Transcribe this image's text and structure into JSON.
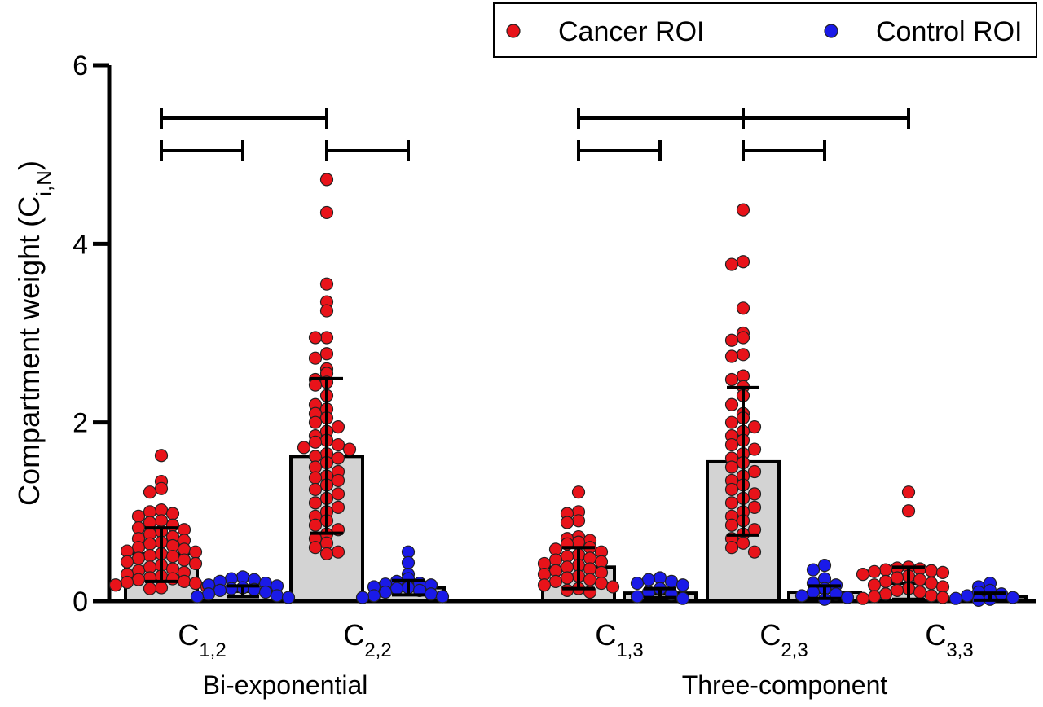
{
  "chart_data": {
    "type": "bar",
    "ylabel": "Compartment weight (C",
    "ylabel_sub": "i,N",
    "ylabel_close": ")",
    "ylim": [
      0,
      6
    ],
    "yticks": [
      "0",
      "2",
      "4",
      "6"
    ],
    "grid": false,
    "legend": {
      "placement": "top-right",
      "entries": [
        {
          "name": "Cancer ROI",
          "color": "#e8131a"
        },
        {
          "name": "Control ROI",
          "color": "#1a1ae8"
        }
      ]
    },
    "groups": [
      {
        "label": "Bi-exponential",
        "categories": [
          "C1,2",
          "C2,2"
        ]
      },
      {
        "label": "Three-component",
        "categories": [
          "C1,3",
          "C2,3",
          "C3,3"
        ]
      }
    ],
    "categories": [
      {
        "base": "C",
        "sub": "1,2",
        "group": "Bi-exponential"
      },
      {
        "base": "C",
        "sub": "2,2",
        "group": "Bi-exponential"
      },
      {
        "base": "C",
        "sub": "1,3",
        "group": "Three-component"
      },
      {
        "base": "C",
        "sub": "2,3",
        "group": "Three-component"
      },
      {
        "base": "C",
        "sub": "3,3",
        "group": "Three-component"
      }
    ],
    "series": [
      {
        "name": "Cancer ROI",
        "color": "#e8131a",
        "bar_color": "#d3d3d3",
        "means": [
          0.53,
          1.62,
          0.38,
          1.56,
          0.2
        ],
        "sd_lower": [
          0.22,
          0.76,
          0.14,
          0.74,
          0.02
        ],
        "sd_upper": [
          0.82,
          2.49,
          0.6,
          2.39,
          0.38
        ],
        "points": [
          [
            1.63,
            1.34,
            1.26,
            1.22,
            1.02,
            1.0,
            0.98,
            0.95,
            0.9,
            0.88,
            0.85,
            0.82,
            0.8,
            0.78,
            0.75,
            0.72,
            0.7,
            0.68,
            0.66,
            0.64,
            0.62,
            0.6,
            0.58,
            0.56,
            0.55,
            0.53,
            0.51,
            0.5,
            0.48,
            0.46,
            0.44,
            0.42,
            0.4,
            0.38,
            0.36,
            0.34,
            0.32,
            0.3,
            0.28,
            0.26,
            0.25,
            0.24,
            0.22,
            0.21,
            0.2,
            0.18,
            0.16,
            0.15,
            0.14
          ],
          [
            4.72,
            4.35,
            3.55,
            3.35,
            3.25,
            2.95,
            2.95,
            2.77,
            2.72,
            2.6,
            2.55,
            2.48,
            2.45,
            2.42,
            2.3,
            2.2,
            2.15,
            2.1,
            2.05,
            2.0,
            1.95,
            1.9,
            1.85,
            1.8,
            1.78,
            1.75,
            1.72,
            1.7,
            1.65,
            1.62,
            1.6,
            1.55,
            1.5,
            1.45,
            1.4,
            1.38,
            1.35,
            1.3,
            1.25,
            1.2,
            1.15,
            1.1,
            1.05,
            1.0,
            0.95,
            0.9,
            0.85,
            0.8,
            0.75,
            0.7,
            0.65,
            0.6,
            0.55,
            0.53
          ],
          [
            1.22,
            1.0,
            0.98,
            0.9,
            0.88,
            0.72,
            0.7,
            0.68,
            0.66,
            0.64,
            0.6,
            0.58,
            0.55,
            0.52,
            0.5,
            0.48,
            0.46,
            0.44,
            0.42,
            0.4,
            0.38,
            0.36,
            0.34,
            0.32,
            0.3,
            0.28,
            0.26,
            0.24,
            0.22,
            0.2,
            0.18,
            0.16,
            0.14,
            0.12,
            0.1
          ],
          [
            4.38,
            3.8,
            3.77,
            3.28,
            3.0,
            2.95,
            2.92,
            2.76,
            2.74,
            2.52,
            2.48,
            2.4,
            2.3,
            2.2,
            2.1,
            2.05,
            2.0,
            1.95,
            1.9,
            1.85,
            1.8,
            1.75,
            1.7,
            1.65,
            1.6,
            1.55,
            1.5,
            1.45,
            1.4,
            1.35,
            1.3,
            1.25,
            1.2,
            1.15,
            1.1,
            1.05,
            1.0,
            0.95,
            0.9,
            0.85,
            0.8,
            0.75,
            0.7,
            0.65,
            0.6,
            0.55
          ],
          [
            1.22,
            1.01,
            0.38,
            0.37,
            0.36,
            0.35,
            0.34,
            0.33,
            0.32,
            0.3,
            0.28,
            0.26,
            0.24,
            0.22,
            0.2,
            0.18,
            0.16,
            0.14,
            0.12,
            0.1,
            0.08,
            0.06,
            0.05,
            0.04,
            0.03
          ]
        ]
      },
      {
        "name": "Control ROI",
        "color": "#1a1ae8",
        "bar_color": "#d3d3d3",
        "means": [
          0.11,
          0.15,
          0.09,
          0.1,
          0.05
        ],
        "sd_lower": [
          0.05,
          0.07,
          0.04,
          0.03,
          0.01
        ],
        "sd_upper": [
          0.17,
          0.23,
          0.14,
          0.17,
          0.09
        ],
        "points": [
          [
            0.27,
            0.25,
            0.24,
            0.22,
            0.2,
            0.18,
            0.17,
            0.15,
            0.14,
            0.13,
            0.12,
            0.1,
            0.08,
            0.06,
            0.05,
            0.04
          ],
          [
            0.55,
            0.43,
            0.3,
            0.25,
            0.22,
            0.2,
            0.19,
            0.18,
            0.16,
            0.15,
            0.14,
            0.12,
            0.1,
            0.08,
            0.06,
            0.05,
            0.04
          ],
          [
            0.26,
            0.24,
            0.22,
            0.2,
            0.18,
            0.14,
            0.1,
            0.08,
            0.05,
            0.03
          ],
          [
            0.4,
            0.35,
            0.25,
            0.2,
            0.18,
            0.14,
            0.1,
            0.08,
            0.06,
            0.04,
            0.02
          ],
          [
            0.2,
            0.16,
            0.12,
            0.1,
            0.08,
            0.06,
            0.04,
            0.03,
            0.02,
            0.01
          ]
        ]
      }
    ],
    "significance_brackets": [
      {
        "from": [
          0,
          "Cancer ROI"
        ],
        "to": [
          1,
          "Cancer ROI"
        ],
        "level": 2
      },
      {
        "from": [
          0,
          "Cancer ROI"
        ],
        "to": [
          0,
          "Control ROI"
        ],
        "level": 1
      },
      {
        "from": [
          1,
          "Cancer ROI"
        ],
        "to": [
          1,
          "Control ROI"
        ],
        "level": 1
      },
      {
        "from": [
          2,
          "Cancer ROI"
        ],
        "to": [
          3,
          "Cancer ROI"
        ],
        "level": 2
      },
      {
        "from": [
          3,
          "Cancer ROI"
        ],
        "to": [
          4,
          "Cancer ROI"
        ],
        "level": 2
      },
      {
        "from": [
          2,
          "Cancer ROI"
        ],
        "to": [
          2,
          "Control ROI"
        ],
        "level": 1
      },
      {
        "from": [
          3,
          "Cancer ROI"
        ],
        "to": [
          3,
          "Control ROI"
        ],
        "level": 1
      }
    ]
  }
}
